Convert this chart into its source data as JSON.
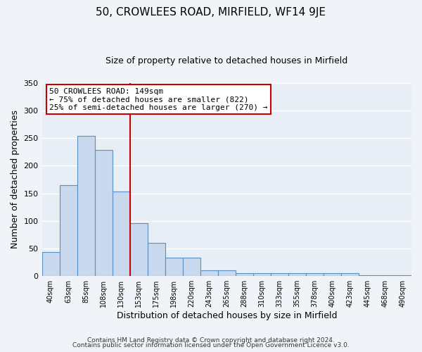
{
  "title": "50, CROWLEES ROAD, MIRFIELD, WF14 9JE",
  "subtitle": "Size of property relative to detached houses in Mirfield",
  "xlabel": "Distribution of detached houses by size in Mirfield",
  "ylabel": "Number of detached properties",
  "bar_labels": [
    "40sqm",
    "63sqm",
    "85sqm",
    "108sqm",
    "130sqm",
    "153sqm",
    "175sqm",
    "198sqm",
    "220sqm",
    "243sqm",
    "265sqm",
    "288sqm",
    "310sqm",
    "333sqm",
    "355sqm",
    "378sqm",
    "400sqm",
    "423sqm",
    "445sqm",
    "468sqm",
    "490sqm"
  ],
  "bar_values": [
    43,
    165,
    254,
    228,
    153,
    96,
    60,
    34,
    34,
    10,
    10,
    5,
    5,
    5,
    5,
    5,
    5,
    5,
    2,
    2,
    1
  ],
  "bar_color": "#c9d9ed",
  "bar_edge_color": "#5a8fc2",
  "vline_x": 5,
  "vline_color": "#cc0000",
  "annotation_title": "50 CROWLEES ROAD: 149sqm",
  "annotation_line1": "← 75% of detached houses are smaller (822)",
  "annotation_line2": "25% of semi-detached houses are larger (270) →",
  "annotation_box_facecolor": "#ffffff",
  "annotation_box_edgecolor": "#cc0000",
  "ylim": [
    0,
    350
  ],
  "yticks": [
    0,
    50,
    100,
    150,
    200,
    250,
    300,
    350
  ],
  "footer1": "Contains HM Land Registry data © Crown copyright and database right 2024.",
  "footer2": "Contains public sector information licensed under the Open Government Licence v3.0.",
  "bg_color": "#f0f4f8",
  "plot_bg_color": "#e8eef5",
  "grid_color": "#ffffff",
  "title_fontsize": 11,
  "subtitle_fontsize": 9
}
